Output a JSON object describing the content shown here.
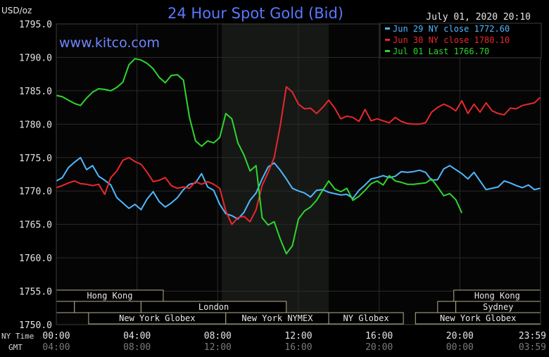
{
  "chart_data": {
    "type": "line",
    "title": "24 Hour Spot Gold (Bid)",
    "website": "www.kitco.com",
    "unit_label": "USD/oz",
    "date_label": "July 01, 2020 20:10",
    "ylim": [
      1750,
      1795
    ],
    "y_ticks": [
      "1795.0",
      "1790.0",
      "1785.0",
      "1780.0",
      "1775.0",
      "1770.0",
      "1765.0",
      "1760.0",
      "1755.0",
      "1750.0"
    ],
    "x_axis_label_ny": "NY Time",
    "x_axis_label_gmt": "GMT",
    "x_ticks_ny": [
      "00:00",
      "04:00",
      "08:00",
      "12:00",
      "16:00",
      "20:00",
      "23:59"
    ],
    "x_ticks_gmt": [
      "04:00",
      "08:00",
      "12:00",
      "16:00",
      "20:00",
      "00:00",
      "03:59"
    ],
    "x_tick_hours": [
      0,
      4,
      8,
      12,
      16,
      20,
      23.983
    ],
    "colors": {
      "background": "#000000",
      "plot_bg": "#050505",
      "grid": "#2a2a2a",
      "shade": "#161816",
      "jun29": "#4fb8ff",
      "jun30": "#e8282a",
      "jul01": "#2ed62e",
      "title": "#5a78ff"
    },
    "shaded_region_hours": [
      8.2,
      13.5
    ],
    "legend_position": "top-right",
    "legend": [
      "Jun 29 NY close 1772.60",
      "Jun 30 NY close 1780.10",
      "Jul 01 Last 1766.70"
    ],
    "series": [
      {
        "name": "Jun 29 NY close 1772.60",
        "color": "#4fb8ff",
        "x": [
          0,
          0.3,
          0.6,
          0.9,
          1.2,
          1.5,
          1.8,
          2.1,
          2.4,
          2.7,
          3.0,
          3.3,
          3.6,
          3.9,
          4.2,
          4.5,
          4.8,
          5.1,
          5.4,
          5.7,
          6.0,
          6.3,
          6.6,
          6.9,
          7.2,
          7.5,
          7.8,
          8.1,
          8.4,
          8.7,
          9.0,
          9.3,
          9.6,
          9.9,
          10.2,
          10.5,
          10.8,
          11.1,
          11.4,
          11.7,
          12.0,
          12.3,
          12.6,
          12.9,
          13.2,
          13.5,
          13.8,
          14.1,
          14.4,
          14.7,
          15.0,
          15.3,
          15.6,
          15.9,
          16.2,
          16.5,
          16.8,
          17.1,
          17.4,
          17.7,
          18.0,
          18.3,
          18.6,
          18.9,
          19.2,
          19.5,
          19.8,
          20.1,
          20.4,
          20.7,
          21.0,
          21.3,
          21.6,
          21.9,
          22.2,
          22.5,
          22.8,
          23.1,
          23.4,
          23.7,
          23.98
        ],
        "values": [
          1771.5,
          1772.0,
          1773.5,
          1774.3,
          1775.0,
          1773.2,
          1773.8,
          1772.2,
          1771.6,
          1770.9,
          1769.0,
          1768.2,
          1767.4,
          1768.0,
          1767.2,
          1768.8,
          1769.9,
          1768.4,
          1767.6,
          1768.2,
          1769.0,
          1770.2,
          1771.0,
          1771.2,
          1772.6,
          1770.6,
          1770.1,
          1768.0,
          1766.6,
          1766.3,
          1765.8,
          1766.8,
          1768.6,
          1769.7,
          1771.8,
          1773.6,
          1774.2,
          1773.1,
          1771.8,
          1770.4,
          1770.0,
          1769.7,
          1769.1,
          1770.1,
          1770.2,
          1769.8,
          1769.6,
          1769.4,
          1769.5,
          1768.9,
          1770.1,
          1770.9,
          1771.8,
          1772.0,
          1772.3,
          1772.0,
          1772.2,
          1772.9,
          1772.8,
          1772.9,
          1773.1,
          1772.8,
          1771.6,
          1771.7,
          1773.3,
          1773.8,
          1773.2,
          1772.6,
          1771.8,
          1772.8,
          1771.5,
          1770.2,
          1770.4,
          1770.6,
          1771.5,
          1771.2,
          1770.8,
          1770.5,
          1770.9,
          1770.2,
          1770.4
        ]
      },
      {
        "name": "Jun 30 NY close 1780.10",
        "color": "#e8282a",
        "x": [
          0,
          0.3,
          0.6,
          0.9,
          1.2,
          1.5,
          1.8,
          2.1,
          2.4,
          2.7,
          3.0,
          3.3,
          3.6,
          3.9,
          4.2,
          4.5,
          4.8,
          5.1,
          5.4,
          5.7,
          6.0,
          6.3,
          6.6,
          6.9,
          7.2,
          7.5,
          7.8,
          8.1,
          8.4,
          8.7,
          9.0,
          9.3,
          9.6,
          9.9,
          10.2,
          10.5,
          10.8,
          11.1,
          11.4,
          11.7,
          12.0,
          12.3,
          12.6,
          12.9,
          13.2,
          13.5,
          13.8,
          14.1,
          14.4,
          14.7,
          15.0,
          15.3,
          15.6,
          15.9,
          16.2,
          16.5,
          16.8,
          17.1,
          17.4,
          17.7,
          18.0,
          18.3,
          18.6,
          18.9,
          19.2,
          19.5,
          19.8,
          20.1,
          20.4,
          20.7,
          21.0,
          21.3,
          21.6,
          21.9,
          22.2,
          22.5,
          22.8,
          23.1,
          23.4,
          23.7,
          23.98
        ],
        "values": [
          1770.5,
          1770.8,
          1771.2,
          1771.5,
          1771.1,
          1771.0,
          1770.8,
          1771.0,
          1769.5,
          1772.0,
          1773.0,
          1774.6,
          1775.0,
          1774.4,
          1774.0,
          1772.8,
          1771.4,
          1771.6,
          1772.0,
          1770.8,
          1770.4,
          1770.6,
          1770.4,
          1771.4,
          1771.0,
          1771.4,
          1771.0,
          1770.4,
          1767.0,
          1765.0,
          1766.0,
          1766.2,
          1765.4,
          1767.2,
          1770.8,
          1772.8,
          1775.0,
          1779.8,
          1785.6,
          1784.8,
          1783.0,
          1782.3,
          1782.4,
          1781.6,
          1782.5,
          1783.6,
          1782.4,
          1780.8,
          1781.2,
          1781.0,
          1780.4,
          1782.2,
          1780.5,
          1780.8,
          1780.5,
          1780.2,
          1781.0,
          1780.4,
          1780.1,
          1780.0,
          1780.0,
          1780.2,
          1781.8,
          1782.5,
          1783.0,
          1782.6,
          1782.0,
          1783.5,
          1781.6,
          1783.0,
          1781.8,
          1783.2,
          1782.0,
          1781.6,
          1781.4,
          1782.4,
          1782.3,
          1782.8,
          1783.0,
          1783.2,
          1784.0
        ]
      },
      {
        "name": "Jul 01 Last 1766.70",
        "color": "#2ed62e",
        "x": [
          0,
          0.3,
          0.6,
          0.9,
          1.2,
          1.5,
          1.8,
          2.1,
          2.4,
          2.7,
          3.0,
          3.3,
          3.6,
          3.9,
          4.2,
          4.5,
          4.8,
          5.1,
          5.4,
          5.7,
          6.0,
          6.3,
          6.6,
          6.9,
          7.2,
          7.5,
          7.8,
          8.1,
          8.4,
          8.7,
          9.0,
          9.3,
          9.6,
          9.9,
          10.2,
          10.5,
          10.8,
          11.1,
          11.4,
          11.7,
          12.0,
          12.3,
          12.6,
          12.9,
          13.2,
          13.5,
          13.8,
          14.1,
          14.4,
          14.7,
          15.0,
          15.3,
          15.6,
          15.9,
          16.2,
          16.5,
          16.8,
          17.1,
          17.4,
          17.7,
          18.0,
          18.3,
          18.6,
          18.9,
          19.2,
          19.5,
          19.8,
          20.1
        ],
        "values": [
          1784.3,
          1784.1,
          1783.6,
          1783.1,
          1782.8,
          1783.9,
          1784.8,
          1785.3,
          1785.2,
          1785.0,
          1785.5,
          1786.3,
          1788.9,
          1789.8,
          1789.6,
          1789.1,
          1788.3,
          1787.0,
          1786.2,
          1787.3,
          1787.4,
          1786.6,
          1781.0,
          1777.5,
          1776.7,
          1777.5,
          1777.2,
          1778.0,
          1781.6,
          1780.8,
          1777.2,
          1775.4,
          1773.0,
          1773.8,
          1766.0,
          1764.9,
          1765.4,
          1762.8,
          1760.6,
          1761.8,
          1765.8,
          1767.0,
          1767.6,
          1768.6,
          1770.1,
          1771.5,
          1770.3,
          1769.9,
          1770.4,
          1768.6,
          1769.2,
          1770.1,
          1771.1,
          1771.5,
          1770.9,
          1772.3,
          1771.5,
          1771.3,
          1771.0,
          1771.0,
          1771.1,
          1771.2,
          1771.8,
          1770.6,
          1769.3,
          1769.6,
          1768.7,
          1766.7
        ]
      }
    ],
    "session_rows": [
      [
        {
          "label": "Hong Kong",
          "start": 0,
          "end": 5.3
        },
        {
          "label": "Hong Kong",
          "start": 19.7,
          "end": 24
        }
      ],
      [
        {
          "label": "",
          "start": 0,
          "end": 0.9
        },
        {
          "label": "",
          "start": 0.9,
          "end": 4.2
        },
        {
          "label": "London",
          "start": 4.2,
          "end": 11.4
        },
        {
          "label": "",
          "start": 18.9,
          "end": 19.8
        },
        {
          "label": "Sydney",
          "start": 19.8,
          "end": 24
        }
      ],
      [
        {
          "label": "New York Globex",
          "start": 1.6,
          "end": 8.4
        },
        {
          "label": "New York NYMEX",
          "start": 8.4,
          "end": 13.5
        },
        {
          "label": "NY Globex",
          "start": 13.5,
          "end": 17.2
        },
        {
          "label": "New York Globex",
          "start": 17.8,
          "end": 24
        }
      ]
    ]
  }
}
